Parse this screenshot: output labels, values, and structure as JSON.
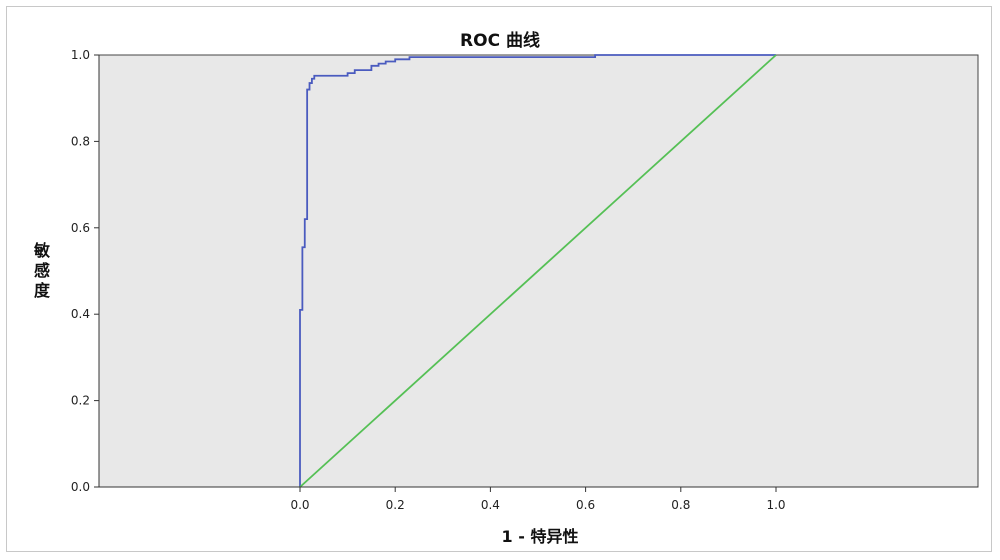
{
  "chart_data": {
    "type": "line",
    "title": "ROC 曲线",
    "xlabel": "1 - 特异性",
    "ylabel": "敏感度",
    "xlim": [
      0,
      1
    ],
    "ylim": [
      0,
      1
    ],
    "x_ticks": [
      "0.0",
      "0.2",
      "0.4",
      "0.6",
      "0.8",
      "1.0"
    ],
    "y_ticks": [
      "0.0",
      "0.2",
      "0.4",
      "0.6",
      "0.8",
      "1.0"
    ],
    "grid": false,
    "plot_background": "#e8e8e8",
    "series": [
      {
        "color": "#4a5bbf",
        "step": true,
        "x": [
          0.0,
          0.0,
          0.005,
          0.005,
          0.01,
          0.01,
          0.015,
          0.015,
          0.02,
          0.02,
          0.025,
          0.025,
          0.03,
          0.03,
          0.1,
          0.1,
          0.115,
          0.115,
          0.15,
          0.15,
          0.165,
          0.165,
          0.18,
          0.18,
          0.2,
          0.2,
          0.23,
          0.23,
          0.62,
          0.62,
          1.0
        ],
        "y": [
          0.0,
          0.41,
          0.41,
          0.555,
          0.555,
          0.62,
          0.62,
          0.92,
          0.92,
          0.935,
          0.935,
          0.945,
          0.945,
          0.952,
          0.952,
          0.958,
          0.958,
          0.965,
          0.965,
          0.975,
          0.975,
          0.98,
          0.98,
          0.985,
          0.985,
          0.99,
          0.99,
          0.995,
          0.995,
          1.0,
          1.0
        ]
      },
      {
        "color": "#55c055",
        "step": false,
        "x": [
          0.0,
          1.0
        ],
        "y": [
          0.0,
          1.0
        ]
      }
    ]
  }
}
